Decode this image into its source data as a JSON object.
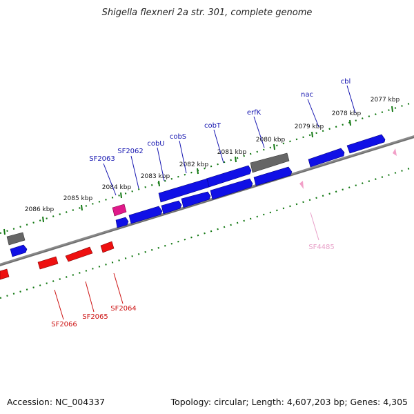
{
  "title": "Shigella flexneri 2a str. 301, complete genome",
  "footer": {
    "accession": "Accession: NC_004337",
    "summary": "Topology: circular; Length: 4,607,203 bp; Genes: 4,305"
  },
  "colors": {
    "forward_gene": "#1010e6",
    "reverse_gene": "#ee1010",
    "pseudo_gene": "#666666",
    "other_gene": "#e0198a",
    "feature_pink": "#f2a0c8",
    "tick": "#117711",
    "backbone": "#8a8a8a",
    "label_forward": "#1515b0",
    "label_reverse": "#cc1010",
    "label_other": "#e8a0c8"
  },
  "scale_labels": [
    "2077 kbp",
    "2078 kbp",
    "2079 kbp",
    "2080 kbp",
    "2081 kbp",
    "2082 kbp",
    "2083 kbp",
    "2084 kbp",
    "2085 kbp",
    "2086 kbp"
  ],
  "gene_labels": {
    "forward": [
      "cbl",
      "nac",
      "erfK",
      "cobT",
      "cobS",
      "cobU",
      "SF2062",
      "SF2063"
    ],
    "reverse": [
      "SF2064",
      "SF2065",
      "SF2066"
    ],
    "other": [
      "SF4485"
    ]
  }
}
